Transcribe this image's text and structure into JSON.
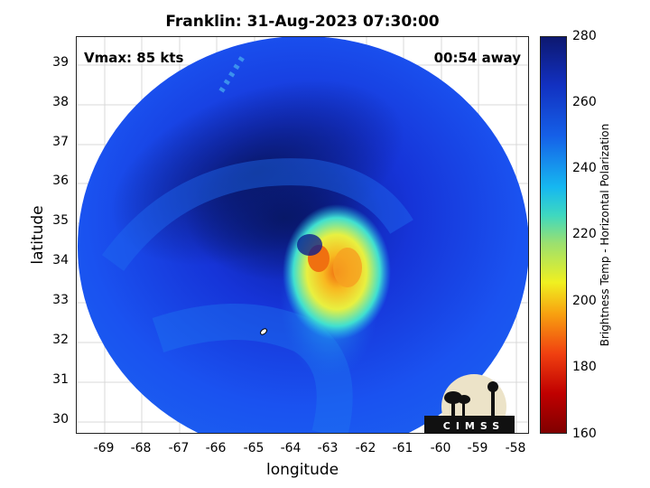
{
  "title": "Franklin: 31-Aug-2023 07:30:00",
  "vmax_label": "Vmax: 85 kts",
  "time_away_label": "00:54 away",
  "xlabel": "longitude",
  "ylabel": "latitude",
  "x_ticks": [
    "-69",
    "-68",
    "-67",
    "-66",
    "-65",
    "-64",
    "-63",
    "-62",
    "-61",
    "-60",
    "-59",
    "-58"
  ],
  "y_ticks": [
    "39",
    "38",
    "37",
    "36",
    "35",
    "34",
    "33",
    "32",
    "31",
    "30"
  ],
  "colorbar": {
    "label": "Brightness Temp - Horizontal Polarization",
    "ticks": [
      "280",
      "260",
      "240",
      "220",
      "200",
      "180",
      "160"
    ]
  },
  "logo_text": "CIMSS",
  "map_data": {
    "storm_name": "Franklin",
    "storm_center_lon": -63.3,
    "storm_center_lat": 34.2,
    "lon_range": [
      -69.7,
      -57.6
    ],
    "lat_range": [
      29.7,
      39.7
    ],
    "colorscale_range": [
      160,
      280
    ],
    "grid": true
  }
}
